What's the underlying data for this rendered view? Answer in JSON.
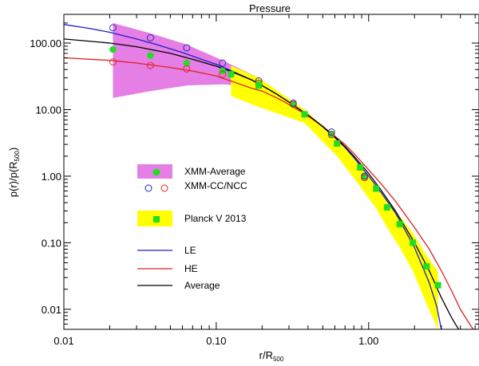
{
  "chart_data": {
    "type": "line",
    "title": "Pressure",
    "xlabel": "r/R",
    "xlabel_sub": "500",
    "ylabel_main": "p(r)/p(R",
    "ylabel_sub": "500",
    "ylabel_end": ")",
    "x_scale": "log",
    "y_scale": "log",
    "xlim": [
      0.01,
      5.3
    ],
    "ylim": [
      0.005,
      270
    ],
    "x_ticks": [
      0.01,
      0.1,
      1.0
    ],
    "x_tick_labels": [
      "0.01",
      "0.10",
      "1.00"
    ],
    "y_ticks": [
      0.01,
      0.1,
      1.0,
      10.0,
      100.0
    ],
    "y_tick_labels": [
      "0.01",
      "0.10",
      "1.00",
      "10.00",
      "100.00"
    ],
    "colors": {
      "xmm_band": "#e57ee5",
      "planck_band": "#ffff00",
      "green_marker": "#22dd22",
      "le": "#1e1ec8",
      "he": "#e02020",
      "average": "#000000"
    },
    "series": [
      {
        "name": "LE",
        "style": "line",
        "color": "#1e1ec8",
        "x": [
          0.01,
          0.015,
          0.02,
          0.03,
          0.04,
          0.06,
          0.08,
          0.1,
          0.13,
          0.17,
          0.2,
          0.25,
          0.3,
          0.4,
          0.5,
          0.6,
          0.7,
          0.8,
          1.0,
          1.2,
          1.5,
          2.0,
          2.5,
          2.8,
          3.0
        ],
        "values": [
          190,
          165,
          145,
          115,
          96,
          72,
          57,
          48,
          37,
          28,
          23,
          17,
          13,
          8.2,
          5.5,
          3.8,
          2.7,
          1.9,
          1.0,
          0.58,
          0.28,
          0.085,
          0.025,
          0.011,
          0.005
        ]
      },
      {
        "name": "HE",
        "style": "line",
        "color": "#e02020",
        "x": [
          0.01,
          0.02,
          0.03,
          0.05,
          0.07,
          0.1,
          0.13,
          0.17,
          0.2,
          0.25,
          0.3,
          0.4,
          0.5,
          0.6,
          0.7,
          0.8,
          1.0,
          1.2,
          1.5,
          2.0,
          2.5,
          3.0,
          3.5,
          4.0,
          4.5,
          5.0,
          5.3
        ],
        "values": [
          60,
          55,
          50,
          43,
          38,
          32,
          26,
          21,
          19,
          15,
          12,
          8.0,
          5.6,
          4.0,
          3.0,
          2.2,
          1.25,
          0.78,
          0.42,
          0.17,
          0.08,
          0.038,
          0.019,
          0.01,
          0.0065,
          0.0045,
          0.0038
        ]
      },
      {
        "name": "Average",
        "style": "line",
        "color": "#000000",
        "x": [
          0.01,
          0.02,
          0.03,
          0.05,
          0.07,
          0.1,
          0.13,
          0.17,
          0.2,
          0.25,
          0.3,
          0.4,
          0.5,
          0.6,
          0.7,
          0.8,
          1.0,
          1.2,
          1.5,
          2.0,
          2.5,
          3.0,
          3.5,
          4.0,
          4.5
        ],
        "values": [
          115,
          100,
          88,
          70,
          57,
          45,
          36,
          28,
          23,
          17,
          13,
          8.3,
          5.6,
          3.9,
          2.8,
          2.0,
          1.1,
          0.63,
          0.3,
          0.1,
          0.038,
          0.015,
          0.0075,
          0.0045,
          0.0035
        ]
      },
      {
        "name": "XMM-Average",
        "style": "filled-circle",
        "color": "#22dd22",
        "x": [
          0.021,
          0.037,
          0.064,
          0.11,
          0.19,
          0.32,
          0.57,
          0.94
        ],
        "values": [
          80,
          65,
          50,
          38,
          24,
          12,
          4.3,
          1.0
        ]
      },
      {
        "name": "XMM-CC",
        "style": "open-circle",
        "color": "#1e1ec8",
        "x": [
          0.021,
          0.037,
          0.064,
          0.11,
          0.19,
          0.32,
          0.57,
          0.94
        ],
        "values": [
          170,
          120,
          85,
          50,
          27,
          12.5,
          4.6,
          1.0
        ]
      },
      {
        "name": "XMM-NCC",
        "style": "open-circle",
        "color": "#e02020",
        "x": [
          0.021,
          0.037,
          0.064,
          0.11,
          0.19,
          0.32,
          0.57,
          0.94
        ],
        "values": [
          52,
          46,
          41,
          34,
          25,
          12,
          4.2,
          0.95
        ]
      },
      {
        "name": "Planck V 2013",
        "style": "filled-square",
        "color": "#22dd22",
        "x": [
          0.125,
          0.19,
          0.38,
          0.62,
          0.88,
          1.12,
          1.32,
          1.6,
          1.95,
          2.4,
          2.85
        ],
        "values": [
          34,
          23,
          8.5,
          3.1,
          1.35,
          0.65,
          0.34,
          0.19,
          0.1,
          0.044,
          0.023
        ]
      }
    ],
    "bands": [
      {
        "name": "XMM-Average",
        "color": "#e57ee5",
        "x": [
          0.021,
          0.037,
          0.064,
          0.11,
          0.19
        ],
        "upper": [
          200,
          140,
          95,
          55,
          30
        ],
        "lower": [
          15,
          19,
          23,
          24,
          22
        ]
      },
      {
        "name": "Planck V 2013",
        "color": "#ffff00",
        "x": [
          0.125,
          0.19,
          0.38,
          0.62,
          0.88,
          1.12,
          1.32,
          1.6,
          1.95,
          2.4,
          2.85
        ],
        "upper": [
          46,
          30,
          10,
          3.6,
          1.5,
          0.75,
          0.43,
          0.25,
          0.14,
          0.064,
          0.037
        ],
        "lower": [
          16,
          11,
          6.3,
          2.0,
          0.7,
          0.33,
          0.17,
          0.085,
          0.038,
          0.012,
          0.005
        ]
      }
    ],
    "legend": {
      "placement": "left-middle",
      "entries": [
        {
          "label": "XMM-Average",
          "kind": "band-dot"
        },
        {
          "label": "XMM-CC/NCC",
          "kind": "open-circles"
        },
        {
          "label": "Planck V 2013",
          "kind": "band-square"
        },
        {
          "label": "LE",
          "kind": "line"
        },
        {
          "label": "HE",
          "kind": "line"
        },
        {
          "label": "Average",
          "kind": "line"
        }
      ]
    }
  }
}
